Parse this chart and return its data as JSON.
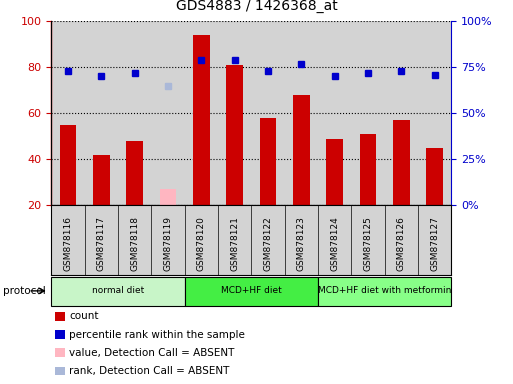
{
  "title": "GDS4883 / 1426368_at",
  "samples": [
    "GSM878116",
    "GSM878117",
    "GSM878118",
    "GSM878119",
    "GSM878120",
    "GSM878121",
    "GSM878122",
    "GSM878123",
    "GSM878124",
    "GSM878125",
    "GSM878126",
    "GSM878127"
  ],
  "count_values": [
    55,
    42,
    48,
    null,
    94,
    81,
    58,
    68,
    49,
    51,
    57,
    45
  ],
  "count_absent": [
    null,
    null,
    null,
    27,
    null,
    null,
    null,
    null,
    null,
    null,
    null,
    null
  ],
  "percentile_values": [
    73,
    70,
    72,
    null,
    79,
    79,
    73,
    77,
    70,
    72,
    73,
    71
  ],
  "percentile_absent": [
    null,
    null,
    null,
    65,
    null,
    null,
    null,
    null,
    null,
    null,
    null,
    null
  ],
  "protocols": [
    {
      "label": "normal diet",
      "start": 0,
      "end": 4,
      "color": "#c8f5c8"
    },
    {
      "label": "MCD+HF diet",
      "start": 4,
      "end": 8,
      "color": "#44ee44"
    },
    {
      "label": "MCD+HF diet with metformin",
      "start": 8,
      "end": 12,
      "color": "#88ff88"
    }
  ],
  "ylim_left": [
    20,
    100
  ],
  "ylim_right": [
    0,
    100
  ],
  "bar_color": "#cc0000",
  "bar_absent_color": "#ffb6c1",
  "dot_color": "#0000cc",
  "dot_absent_color": "#aab8d8",
  "grid_color": "#000000",
  "bg_color": "#d3d3d3",
  "title_color": "#000000",
  "left_axis_color": "#cc0000",
  "right_axis_color": "#0000cc",
  "bar_width": 0.5,
  "legend_items": [
    {
      "color": "#cc0000",
      "label": "count"
    },
    {
      "color": "#0000cc",
      "label": "percentile rank within the sample"
    },
    {
      "color": "#ffb6c1",
      "label": "value, Detection Call = ABSENT"
    },
    {
      "color": "#aab8d8",
      "label": "rank, Detection Call = ABSENT"
    }
  ]
}
